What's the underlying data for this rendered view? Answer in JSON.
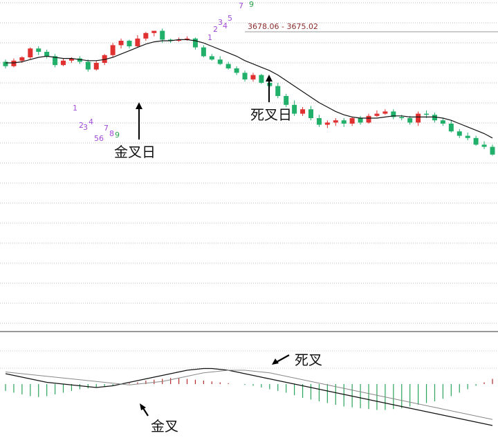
{
  "chart_data": [
    {
      "type": "candlestick",
      "title": "",
      "annotations": [
        {
          "text": "金叉日",
          "target_bar": 20
        },
        {
          "text": "死叉日",
          "target_bar": 43
        }
      ],
      "price_range_label": "3678.06 - 3675.02",
      "td_sequence_low": [
        "1",
        "2",
        "3",
        "4",
        "5",
        "6",
        "7",
        "8",
        "9"
      ],
      "td_sequence_high": [
        "1",
        "2",
        "3",
        "4",
        "5",
        "7",
        "9"
      ],
      "colors": {
        "up": "#e03030",
        "down": "#20b06a",
        "ma": "#111111",
        "td_setup": "#a24bd8",
        "td_complete": "#2aa44a"
      },
      "ohlc": [
        [
          91,
          87,
          93,
          85
        ],
        [
          87,
          92,
          94,
          86
        ],
        [
          92,
          95,
          96,
          90
        ],
        [
          95,
          103,
          104,
          93
        ],
        [
          103,
          100,
          105,
          97
        ],
        [
          100,
          96,
          102,
          94
        ],
        [
          96,
          88,
          98,
          86
        ],
        [
          88,
          92,
          94,
          87
        ],
        [
          92,
          94,
          95,
          90
        ],
        [
          94,
          91,
          96,
          89
        ],
        [
          91,
          84,
          93,
          82
        ],
        [
          84,
          90,
          92,
          83
        ],
        [
          90,
          97,
          98,
          88
        ],
        [
          97,
          106,
          108,
          95
        ],
        [
          106,
          110,
          112,
          103
        ],
        [
          110,
          105,
          111,
          103
        ],
        [
          105,
          112,
          115,
          104
        ],
        [
          112,
          117,
          118,
          110
        ],
        [
          117,
          119,
          119,
          114
        ],
        [
          119,
          111,
          121,
          108
        ],
        [
          111,
          110,
          112,
          108
        ],
        [
          110,
          111,
          113,
          109
        ],
        [
          111,
          112,
          114,
          110
        ],
        [
          112,
          104,
          113,
          102
        ],
        [
          104,
          96,
          106,
          95
        ],
        [
          96,
          93,
          98,
          92
        ],
        [
          93,
          89,
          96,
          88
        ],
        [
          89,
          85,
          91,
          84
        ],
        [
          85,
          81,
          87,
          79
        ],
        [
          81,
          75,
          83,
          73
        ],
        [
          75,
          79,
          81,
          73
        ],
        [
          79,
          72,
          80,
          71
        ],
        [
          72,
          69,
          74,
          67
        ],
        [
          69,
          60,
          72,
          58
        ],
        [
          60,
          52,
          62,
          50
        ],
        [
          52,
          44,
          56,
          42
        ],
        [
          44,
          48,
          50,
          42
        ],
        [
          48,
          40,
          51,
          38
        ],
        [
          40,
          34,
          43,
          32
        ],
        [
          34,
          36,
          38,
          31
        ],
        [
          36,
          38,
          40,
          33
        ],
        [
          38,
          35,
          40,
          32
        ],
        [
          35,
          40,
          41,
          33
        ],
        [
          40,
          36,
          42,
          34
        ],
        [
          36,
          42,
          44,
          35
        ],
        [
          42,
          44,
          47,
          41
        ],
        [
          44,
          46,
          48,
          43
        ],
        [
          46,
          41,
          48,
          39
        ],
        [
          41,
          40,
          43,
          38
        ],
        [
          40,
          36,
          42,
          34
        ],
        [
          36,
          44,
          46,
          33
        ],
        [
          44,
          43,
          47,
          40
        ],
        [
          43,
          38,
          45,
          36
        ],
        [
          38,
          35,
          40,
          33
        ],
        [
          35,
          28,
          38,
          27
        ],
        [
          28,
          24,
          30,
          22
        ],
        [
          24,
          22,
          27,
          20
        ],
        [
          22,
          16,
          24,
          15
        ],
        [
          16,
          14,
          19,
          12
        ],
        [
          14,
          7,
          16,
          6
        ]
      ],
      "ma": [
        90,
        90,
        91,
        93,
        95,
        96,
        95,
        94,
        94,
        93,
        92,
        92,
        93,
        95,
        98,
        101,
        104,
        107,
        109,
        110,
        110,
        111,
        111,
        110,
        108,
        105,
        102,
        99,
        96,
        92,
        89,
        86,
        83,
        79,
        74,
        69,
        64,
        59,
        54,
        50,
        46,
        43,
        41,
        40,
        40,
        40,
        41,
        42,
        42,
        41,
        41,
        41,
        41,
        40,
        38,
        35,
        32,
        29,
        26,
        22
      ]
    },
    {
      "type": "bar+line",
      "title": "",
      "annotations": [
        {
          "text": "金叉",
          "target_bar": 20
        },
        {
          "text": "死叉",
          "target_bar": 43
        }
      ],
      "colors": {
        "up": "#b52a2a",
        "down": "#2aa45a",
        "dif": "#111111",
        "dea": "#888888"
      },
      "histogram": [
        -8,
        -10,
        -12,
        -14,
        -15,
        -14,
        -12,
        -10,
        -8,
        -6,
        -5,
        -4,
        -3,
        -2,
        -1,
        1,
        2,
        4,
        5,
        6,
        7,
        7,
        6,
        5,
        4,
        3,
        2,
        1,
        0,
        -1,
        -2,
        -4,
        -6,
        -8,
        -10,
        -13,
        -16,
        -18,
        -20,
        -22,
        -24,
        -26,
        -27,
        -28,
        -29,
        -30,
        -30,
        -29,
        -28,
        -26,
        -24,
        -22,
        -20,
        -17,
        -14,
        -10,
        -6,
        -2,
        2,
        6
      ],
      "dif": [
        12,
        10,
        8,
        6,
        4,
        2,
        1,
        0,
        -1,
        -2,
        -3,
        -4,
        -3,
        -2,
        0,
        2,
        4,
        6,
        8,
        10,
        12,
        14,
        16,
        17,
        18,
        18,
        17,
        16,
        14,
        12,
        10,
        8,
        6,
        4,
        2,
        0,
        -2,
        -4,
        -6,
        -8,
        -10,
        -12,
        -14,
        -16,
        -18,
        -20,
        -22,
        -24,
        -26,
        -28,
        -30,
        -32,
        -34,
        -36,
        -38,
        -40,
        -42,
        -44,
        -46,
        -48
      ],
      "dea": [
        14,
        13,
        12,
        11,
        10,
        9,
        8,
        7,
        6,
        5,
        4,
        3,
        2,
        1,
        0,
        -1,
        0,
        1,
        2,
        3,
        5,
        7,
        9,
        11,
        13,
        14,
        15,
        16,
        16,
        16,
        15,
        14,
        13,
        11,
        9,
        7,
        5,
        3,
        1,
        -1,
        -3,
        -5,
        -7,
        -9,
        -11,
        -13,
        -15,
        -17,
        -19,
        -21,
        -23,
        -25,
        -27,
        -29,
        -31,
        -33,
        -35,
        -37,
        -39,
        -41
      ]
    }
  ]
}
